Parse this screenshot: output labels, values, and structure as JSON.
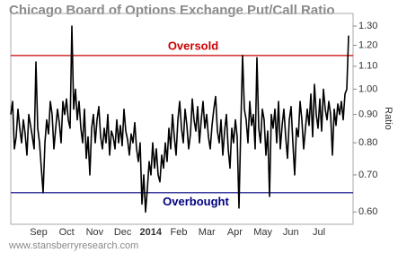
{
  "chart_data": {
    "type": "line",
    "title": "Chicago Board of Options Exchange Put/Call Ratio",
    "y_label": "Ratio",
    "source": "www.stansberryresearch.com",
    "log_scale": true,
    "color": "#000000",
    "x_labels": [
      "Sep",
      "Oct",
      "Nov",
      "Dec",
      "2014",
      "Feb",
      "Mar",
      "Apr",
      "May",
      "Jun",
      "Jul"
    ],
    "ylim": [
      0.57,
      1.37
    ],
    "yticks": [
      {
        "value": 0.6,
        "label": "0.60"
      },
      {
        "value": 0.7,
        "label": "0.70"
      },
      {
        "value": 0.8,
        "label": "0.80"
      },
      {
        "value": 0.9,
        "label": "0.90"
      },
      {
        "value": 1,
        "label": "1.00"
      },
      {
        "value": 1.1,
        "label": "1.10"
      },
      {
        "value": 1.2,
        "label": "1.20"
      },
      {
        "value": 1.3,
        "label": "1.30"
      }
    ],
    "reference_lines": [
      {
        "value": 1.15,
        "label": "Oversold",
        "color": "#cc0000"
      },
      {
        "value": 0.65,
        "label": "Overbought",
        "color": "#000080"
      }
    ],
    "values": [
      0.9,
      0.95,
      0.78,
      0.82,
      0.92,
      0.85,
      0.8,
      0.88,
      0.83,
      0.76,
      0.9,
      0.86,
      0.82,
      0.78,
      1.12,
      0.85,
      0.8,
      0.72,
      0.65,
      0.8,
      0.88,
      0.83,
      0.95,
      0.9,
      0.78,
      0.85,
      0.92,
      0.87,
      0.8,
      0.95,
      0.9,
      0.96,
      0.88,
      0.85,
      1.3,
      0.92,
      1.0,
      0.88,
      0.95,
      0.85,
      0.8,
      0.92,
      0.75,
      0.82,
      0.7,
      0.85,
      0.9,
      0.8,
      0.88,
      0.93,
      0.82,
      0.78,
      0.85,
      0.8,
      0.9,
      0.76,
      0.84,
      0.82,
      0.78,
      0.88,
      0.8,
      0.86,
      0.79,
      0.92,
      0.84,
      0.81,
      0.76,
      0.83,
      0.8,
      0.87,
      0.78,
      0.74,
      0.8,
      0.62,
      0.7,
      0.6,
      0.66,
      0.74,
      0.7,
      0.8,
      0.72,
      0.78,
      0.7,
      0.68,
      0.76,
      0.72,
      0.8,
      0.74,
      0.85,
      0.78,
      0.9,
      0.82,
      0.76,
      0.88,
      0.95,
      0.85,
      0.8,
      0.92,
      0.86,
      0.78,
      0.83,
      0.96,
      0.88,
      0.84,
      0.93,
      0.8,
      0.88,
      0.95,
      0.85,
      0.9,
      0.82,
      0.78,
      0.86,
      0.92,
      0.97,
      0.84,
      0.8,
      0.88,
      0.76,
      0.84,
      0.9,
      0.78,
      0.72,
      0.85,
      0.8,
      0.88,
      0.82,
      0.61,
      0.85,
      1.15,
      0.92,
      0.88,
      0.8,
      0.95,
      0.86,
      0.9,
      0.78,
      1.14,
      0.85,
      0.8,
      0.92,
      0.88,
      0.76,
      0.84,
      0.64,
      0.9,
      0.85,
      0.92,
      0.8,
      0.95,
      0.78,
      0.86,
      0.92,
      0.82,
      0.75,
      0.88,
      0.93,
      0.8,
      0.7,
      0.85,
      0.82,
      0.95,
      0.88,
      0.78,
      0.85,
      0.92,
      0.86,
      0.98,
      0.82,
      1.02,
      0.9,
      0.85,
      0.96,
      0.84,
      1.0,
      0.92,
      0.88,
      0.95,
      0.9,
      0.76,
      0.92,
      0.86,
      0.94,
      0.9,
      0.95,
      0.88,
      0.98,
      1.0,
      1.25
    ]
  }
}
